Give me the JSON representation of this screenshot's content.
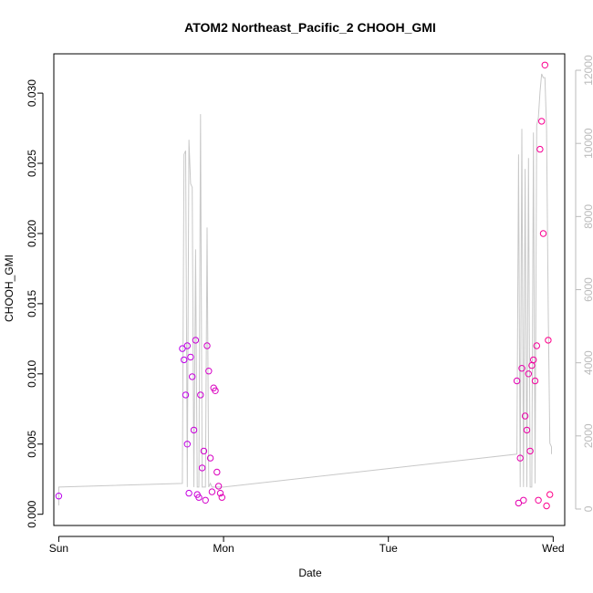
{
  "chart_data": {
    "type": "scatter",
    "title": "ATOM2 Northeast_Pacific_2 CHOOH_GMI",
    "xlabel": "Date",
    "ylabel": "CHOOH_GMI",
    "x_categories": [
      "Sun",
      "Mon",
      "Tue",
      "Wed"
    ],
    "xlim": [
      -0.03,
      3.07
    ],
    "ylim": [
      -0.0008,
      0.0328
    ],
    "y_ticks": [
      0.0,
      0.005,
      0.01,
      0.015,
      0.02,
      0.025,
      0.03
    ],
    "y_tick_labels": [
      "0.000",
      "0.005",
      "0.010",
      "0.015",
      "0.020",
      "0.025",
      "0.030"
    ],
    "y2lim": [
      -450,
      12450
    ],
    "y2_ticks": [
      0,
      2000,
      4000,
      6000,
      8000,
      10000,
      12000
    ],
    "y2_tick_labels": [
      "0",
      "2000",
      "4000",
      "6000",
      "8000",
      "10000",
      "12000"
    ],
    "grid": false,
    "legend": "none",
    "colors": {
      "points_start": "#bb00ee",
      "points_end": "#ff0088",
      "altitude_line": "#c8c8c8",
      "axis": "#000000",
      "secondary_axis": "#bbbbbb"
    },
    "series": [
      {
        "kind": "points",
        "x": [
          0.0,
          0.75,
          0.76,
          0.77,
          0.78,
          0.78,
          0.79,
          0.8,
          0.81,
          0.82,
          0.83,
          0.84,
          0.85,
          0.86,
          0.87,
          0.88,
          0.89,
          0.9,
          0.91,
          0.92,
          0.93,
          0.94,
          0.95,
          0.96,
          0.97,
          0.98,
          0.99,
          2.78,
          2.79,
          2.8,
          2.81,
          2.82,
          2.83,
          2.84,
          2.85,
          2.86,
          2.87,
          2.88,
          2.89,
          2.9,
          2.91,
          2.92,
          2.93,
          2.94,
          2.95,
          2.96,
          2.97,
          2.98
        ],
        "y": [
          0.0013,
          0.0118,
          0.011,
          0.0085,
          0.005,
          0.012,
          0.0015,
          0.0112,
          0.0098,
          0.006,
          0.0124,
          0.0014,
          0.0012,
          0.0085,
          0.0033,
          0.0045,
          0.001,
          0.012,
          0.0102,
          0.004,
          0.0016,
          0.009,
          0.0088,
          0.003,
          0.002,
          0.0015,
          0.0012,
          0.0095,
          0.0008,
          0.004,
          0.0104,
          0.001,
          0.007,
          0.006,
          0.01,
          0.0045,
          0.0106,
          0.011,
          0.0095,
          0.012,
          0.001,
          0.026,
          0.028,
          0.02,
          0.032,
          0.0006,
          0.0124,
          0.0014
        ]
      },
      {
        "kind": "line",
        "axis": "right",
        "x": [
          0.0,
          0.0,
          0.75,
          0.76,
          0.77,
          0.78,
          0.79,
          0.8,
          0.81,
          0.82,
          0.83,
          0.84,
          0.85,
          0.86,
          0.87,
          0.88,
          0.89,
          0.9,
          0.91,
          0.92,
          0.93,
          0.94,
          0.95,
          0.96,
          0.97,
          0.98,
          0.99,
          1.0,
          2.78,
          2.79,
          2.8,
          2.81,
          2.82,
          2.83,
          2.84,
          2.85,
          2.86,
          2.87,
          2.88,
          2.89,
          2.9,
          2.91,
          2.92,
          2.93,
          2.94,
          2.95,
          2.96,
          2.97,
          2.98,
          2.99,
          2.99
        ],
        "y": [
          100,
          600,
          700,
          9700,
          9800,
          600,
          10100,
          8900,
          8800,
          600,
          7100,
          600,
          600,
          10800,
          600,
          600,
          600,
          7700,
          600,
          700,
          600,
          600,
          600,
          600,
          600,
          600,
          600,
          600,
          1500,
          9700,
          600,
          10400,
          600,
          9300,
          600,
          9600,
          600,
          600,
          10300,
          700,
          10500,
          10700,
          11400,
          11900,
          11800,
          11800,
          10400,
          5500,
          1800,
          1700,
          1500
        ]
      }
    ]
  }
}
